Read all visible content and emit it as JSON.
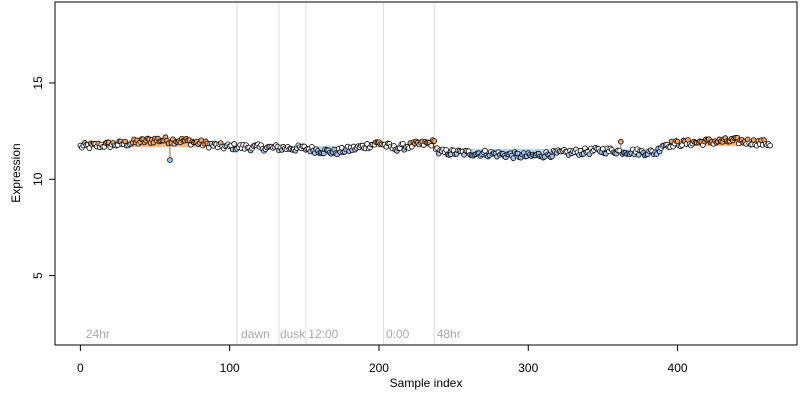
{
  "chart_data": {
    "type": "scatter",
    "title": "",
    "xlabel": "Sample index",
    "ylabel": "Expression",
    "xlim": [
      -17,
      480
    ],
    "ylim": [
      1.4,
      19.2
    ],
    "x_ticks": [
      0,
      100,
      200,
      300,
      400
    ],
    "y_ticks": [
      5,
      10,
      15
    ],
    "grid": false,
    "legend": "none",
    "colors": {
      "point_stroke": "#000000",
      "fill_above": "#f4a460",
      "fill_below": "#a3c4f0",
      "fill_neutral": "#ffffff",
      "band_above": "#f4a460",
      "band_below": "#a3c4f0",
      "divider": "#dddddd",
      "section_label": "#a9a9a9"
    },
    "section_dividers": [
      105,
      133,
      151,
      203,
      237
    ],
    "section_labels": [
      {
        "label": "24hr",
        "x": 3
      },
      {
        "label": "dawn",
        "x": 107
      },
      {
        "label": "dusk",
        "x": 133
      },
      {
        "label": "12:00",
        "x": 152
      },
      {
        "label": "0:00",
        "x": 204
      },
      {
        "label": "48hr",
        "x": 238
      }
    ],
    "baseline_bands": [
      {
        "x_start": 0,
        "x_end": 237,
        "value": 11.7
      },
      {
        "x_start": 237,
        "x_end": 386,
        "value": 11.55
      },
      {
        "x_start": 386,
        "x_end": 462,
        "value": 11.75
      }
    ],
    "series": [
      {
        "x_start": 0,
        "x_end": 462,
        "trend": [
          [
            0,
            11.7
          ],
          [
            30,
            11.85
          ],
          [
            50,
            12.05
          ],
          [
            70,
            12.0
          ],
          [
            95,
            11.7
          ],
          [
            120,
            11.65
          ],
          [
            150,
            11.6
          ],
          [
            170,
            11.4
          ],
          [
            190,
            11.7
          ],
          [
            200,
            11.9
          ],
          [
            210,
            11.6
          ],
          [
            225,
            11.8
          ],
          [
            237,
            11.9
          ],
          [
            240,
            11.4
          ],
          [
            270,
            11.35
          ],
          [
            300,
            11.2
          ],
          [
            320,
            11.35
          ],
          [
            350,
            11.5
          ],
          [
            380,
            11.4
          ],
          [
            386,
            11.4
          ],
          [
            390,
            11.8
          ],
          [
            420,
            11.95
          ],
          [
            440,
            12.0
          ],
          [
            462,
            11.85
          ]
        ],
        "noise": 0.17,
        "outliers": [
          {
            "x": 60,
            "y": 11.0
          },
          {
            "x": 362,
            "y": 11.95
          }
        ]
      }
    ]
  }
}
